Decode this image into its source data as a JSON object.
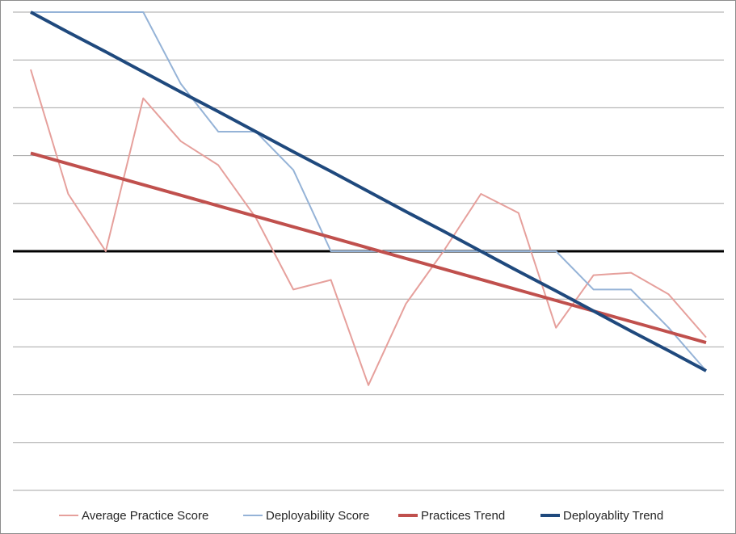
{
  "chart_data": {
    "type": "line",
    "title": "",
    "xlabel": "",
    "ylabel": "",
    "x": [
      1,
      2,
      3,
      4,
      5,
      6,
      7,
      8,
      9,
      10,
      11,
      12,
      13,
      14,
      15,
      16,
      17,
      18,
      19
    ],
    "ylim": [
      -5,
      5
    ],
    "zero_line": 0,
    "grid": "horizontal",
    "legend_position": "bottom",
    "series": [
      {
        "name": "Average Practice Score",
        "color": "#e6a09c",
        "values": [
          3.8,
          1.2,
          0,
          3.2,
          2.3,
          1.8,
          0.7,
          -0.8,
          -0.6,
          -2.8,
          -1.1,
          0,
          1.2,
          0.8,
          -1.6,
          -0.5,
          -0.45,
          -0.9,
          -1.8
        ]
      },
      {
        "name": "Deployability Score",
        "color": "#95b3d7",
        "values": [
          5,
          5,
          5,
          5,
          3.5,
          2.5,
          2.5,
          1.7,
          0,
          0,
          0,
          0,
          0,
          0,
          0,
          -0.8,
          -0.8,
          -1.6,
          -2.5
        ]
      },
      {
        "name": "Practices Trend",
        "color": "#c0504d",
        "values": [
          2.05,
          1.83,
          1.61,
          1.39,
          1.17,
          0.95,
          0.73,
          0.51,
          0.29,
          0.07,
          -0.15,
          -0.37,
          -0.59,
          -0.81,
          -1.03,
          -1.25,
          -1.47,
          -1.69,
          -1.91
        ]
      },
      {
        "name": "Deployablity Trend",
        "color": "#1f497d",
        "values": [
          5.0,
          4.58,
          4.17,
          3.75,
          3.33,
          2.92,
          2.5,
          2.08,
          1.67,
          1.25,
          0.83,
          0.42,
          0.0,
          -0.42,
          -0.83,
          -1.25,
          -1.67,
          -2.08,
          -2.5
        ]
      }
    ]
  }
}
